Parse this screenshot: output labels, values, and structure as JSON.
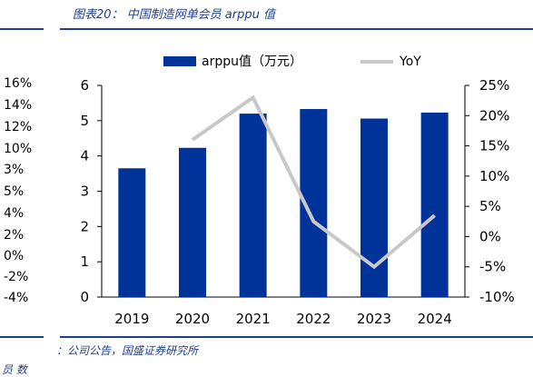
{
  "figure": {
    "title": "图表20： 中国制造网单会员 arppu 值",
    "source": "：公司公告，国盛证券研究所",
    "footer_text": "员 数"
  },
  "left_cropped_axis": {
    "ticks": [
      "16%",
      "14%",
      "12%",
      "10%",
      "8%",
      "6%",
      "4%",
      "2%",
      "0%",
      "-2%",
      "-4%"
    ],
    "tick_display": [
      "16%",
      "14%",
      "12%",
      "10%",
      "3%",
      "5%",
      "4%",
      "2%",
      "0%",
      "-2%",
      "-4%"
    ]
  },
  "chart_data": {
    "type": "bar+line",
    "categories": [
      "2019",
      "2020",
      "2021",
      "2022",
      "2023",
      "2024"
    ],
    "series": [
      {
        "name": "arppu值（万元）",
        "type": "bar",
        "axis": "left",
        "color": "#003399",
        "values": [
          3.65,
          4.23,
          5.2,
          5.33,
          5.06,
          5.23
        ]
      },
      {
        "name": "YoY",
        "type": "line",
        "axis": "right",
        "color": "#c8c8c8",
        "values": [
          null,
          16.0,
          23.0,
          2.5,
          -5.0,
          3.5
        ]
      }
    ],
    "y_left": {
      "min": 0,
      "max": 6,
      "ticks": [
        "0",
        "1",
        "2",
        "3",
        "4",
        "5",
        "6"
      ]
    },
    "y_right": {
      "min": -10,
      "max": 25,
      "ticks": [
        "-10%",
        "-5%",
        "0%",
        "5%",
        "10%",
        "15%",
        "20%",
        "25%"
      ]
    },
    "legend_position": "top",
    "grid": false
  }
}
